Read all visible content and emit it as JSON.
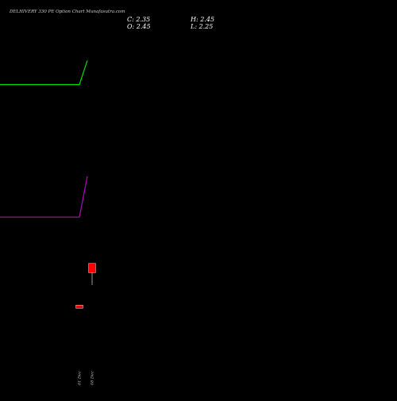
{
  "chart_data": {
    "type": "candlestick",
    "title": "DELHIVERY 330 PE Option Chart Munafasutra.com",
    "ohlc": {
      "close_label": "C: 2.35",
      "high_label": "H: 2.45",
      "open_label": "O: 2.45",
      "low_label": "L: 2.25"
    },
    "x_ticks": [
      "01 Dec",
      "08 Dec"
    ],
    "y_range": [
      1.35,
      4.95
    ],
    "candles": [
      {
        "tick": 0,
        "open": 2.0,
        "high": 2.0,
        "low": 1.98,
        "close": 1.98
      },
      {
        "tick": 1,
        "open": 2.45,
        "high": 2.45,
        "low": 2.25,
        "close": 2.35
      }
    ],
    "series": [
      {
        "color": "#00dd00",
        "values": [
          4.38,
          4.38,
          4.38,
          4.38,
          4.38,
          4.38,
          4.38,
          4.38,
          4.38,
          4.38,
          4.38,
          4.64
        ]
      },
      {
        "color": "#bb00bb",
        "values": [
          2.95,
          2.95,
          2.95,
          2.95,
          2.95,
          2.95,
          2.95,
          2.95,
          2.95,
          2.95,
          2.95,
          3.39
        ]
      }
    ],
    "grid": false,
    "legend": "none",
    "colors": {
      "background": "#000000",
      "candle_down": "#ff0000"
    }
  }
}
